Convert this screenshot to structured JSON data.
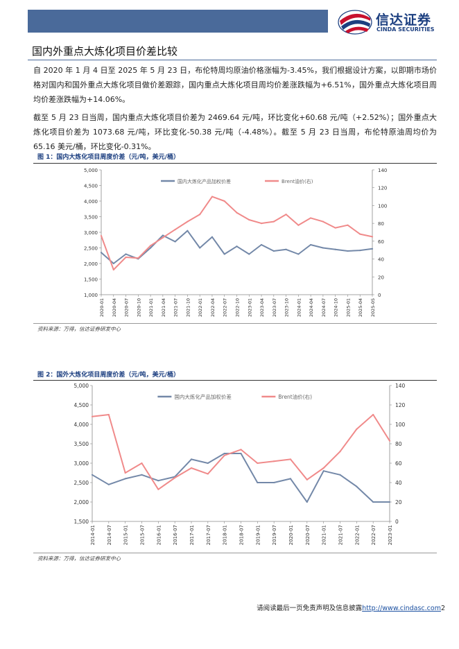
{
  "header": {
    "logo_cn": "信达证券",
    "logo_en": "CINDA SECURITIES"
  },
  "section": {
    "title": "国内外重点大炼化项目价差比较"
  },
  "paragraphs": [
    "自 2020 年 1 月 4 日至 2025 年 5 月 23 日，布伦特周均原油价格涨幅为-3.45%，我们根据设计方案，以即期市场价格对国内和国外重点大炼化项目做价差跟踪，国内重点大炼化项目周均价差涨跌幅为+6.51%，国外重点大炼化项目周均价差涨跌幅为+14.06%。",
    "截至 5 月 23 日当周，国内重点大炼化项目价差为 2469.64 元/吨，环比变化+60.68 元/吨（+2.52%）；国外重点大炼化项目价差为 1073.68 元/吨，环比变化-50.38 元/吨（-4.48%）。截至 5 月 23 日当周，布伦特原油周均价为 65.16 美元/桶，环比变化-0.31%。"
  ],
  "figures": [
    {
      "title": "图 1：国内大炼化项目周度价差（元/吨，美元/桶）",
      "source": "资料来源：万得，信达证券研发中心"
    },
    {
      "title": "图 2：国外大炼化项目周度价差（元/吨，美元/桶）",
      "source": "资料来源：万得，信达证券研发中心"
    }
  ],
  "chart_data": [
    {
      "type": "line",
      "title": "",
      "legend_placement": "top",
      "x": [
        "2020-01",
        "2020-04",
        "2020-07",
        "2020-10",
        "2021-01",
        "2021-04",
        "2021-07",
        "2021-10",
        "2022-01",
        "2022-04",
        "2022-07",
        "2022-10",
        "2023-01",
        "2023-04",
        "2023-07",
        "2023-10",
        "2024-01",
        "2024-04",
        "2024-07",
        "2024-10",
        "2025-01",
        "2025-04",
        "2025-05"
      ],
      "ylim_left": [
        1000,
        5000
      ],
      "ylim_right": [
        0,
        140
      ],
      "yticks_left": [
        "1,000",
        "1,500",
        "2,000",
        "2,500",
        "3,000",
        "3,500",
        "4,000",
        "4,500",
        "5,000"
      ],
      "yticks_right": [
        "0",
        "20",
        "40",
        "60",
        "80",
        "100",
        "120",
        "140"
      ],
      "series": [
        {
          "name": "国内大炼化产品加权价差",
          "axis": "left",
          "color": "#7388a8",
          "values": [
            2350,
            2000,
            2300,
            2150,
            2500,
            2900,
            2700,
            3050,
            2500,
            2850,
            2300,
            2550,
            2300,
            2600,
            2400,
            2450,
            2300,
            2600,
            2500,
            2450,
            2400,
            2420,
            2470
          ]
        },
        {
          "name": "Brent油价(右)",
          "axis": "right",
          "color": "#f08a8a",
          "values": [
            66,
            28,
            42,
            41,
            55,
            64,
            73,
            82,
            90,
            110,
            105,
            92,
            84,
            80,
            82,
            90,
            78,
            86,
            82,
            75,
            78,
            68,
            65
          ]
        }
      ]
    },
    {
      "type": "line",
      "title": "",
      "legend_placement": "top",
      "x": [
        "2014-01",
        "2014-07",
        "2015-01",
        "2015-07",
        "2016-01",
        "2016-07",
        "2017-01",
        "2017-07",
        "2018-01",
        "2018-07",
        "2019-01",
        "2019-07",
        "2020-01",
        "2020-07",
        "2021-01",
        "2021-07",
        "2022-01",
        "2022-07",
        "2023-01"
      ],
      "ylim_left": [
        1500,
        5000
      ],
      "ylim_right": [
        0,
        140
      ],
      "yticks_left": [
        "1,500",
        "2,000",
        "2,500",
        "3,000",
        "3,500",
        "4,000",
        "4,500",
        "5,000"
      ],
      "yticks_right": [
        "0",
        "20",
        "40",
        "60",
        "80",
        "100",
        "120",
        "140"
      ],
      "series": [
        {
          "name": "国内大炼化产品加权价差",
          "axis": "left",
          "color": "#7388a8",
          "values": [
            2700,
            2450,
            2600,
            2700,
            2550,
            2650,
            3100,
            3000,
            3250,
            3250,
            2500,
            2500,
            2600,
            2000,
            2800,
            2700,
            2400,
            2000,
            2000
          ]
        },
        {
          "name": "Brent油价(右)",
          "axis": "right",
          "color": "#f08a8a",
          "values": [
            108,
            110,
            50,
            60,
            33,
            45,
            55,
            49,
            68,
            74,
            60,
            62,
            64,
            43,
            55,
            72,
            95,
            110,
            83
          ]
        }
      ]
    }
  ],
  "footer": {
    "text": "请阅读最后一页免责声明及信息披露",
    "link": "http://www.cindasc.com",
    "page": "2"
  }
}
